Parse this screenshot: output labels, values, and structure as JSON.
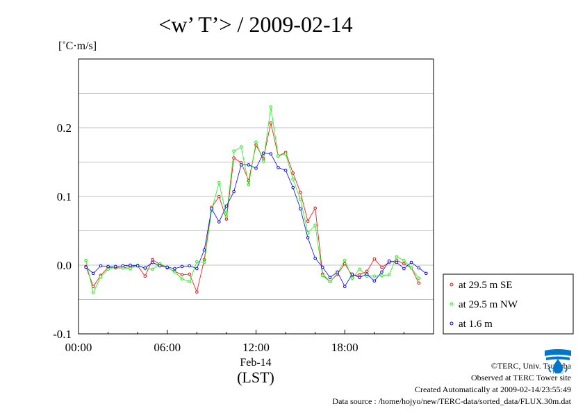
{
  "chart_data": {
    "type": "line",
    "title": "<w’ T’> / 2009-02-14",
    "ylabel": "[˚C·m/s]",
    "xlabel": "Feb-14",
    "xunit": "(LST)",
    "x_range": [
      "00:00",
      "24:00"
    ],
    "ylim": [
      -0.1,
      0.3
    ],
    "x_ticks": [
      "00:00",
      "06:00",
      "12:00",
      "18:00"
    ],
    "y_ticks": [
      "-0.1",
      "0.0",
      "0.1",
      "0.2"
    ],
    "grid": true,
    "legend_position": "right",
    "series": [
      {
        "name": "at 29.5 m SE",
        "color": "#ff0000",
        "times": [
          "00:30",
          "01:00",
          "01:30",
          "02:00",
          "02:30",
          "03:00",
          "03:30",
          "04:00",
          "04:30",
          "05:00",
          "05:30",
          "06:00",
          "06:30",
          "07:00",
          "07:30",
          "08:00",
          "08:30",
          "09:00",
          "09:30",
          "10:00",
          "10:30",
          "11:00",
          "11:30",
          "12:00",
          "12:30",
          "13:00",
          "13:30",
          "14:00",
          "14:30",
          "15:00",
          "15:30",
          "16:00",
          "16:30",
          "17:00",
          "17:30",
          "18:00",
          "18:30",
          "19:00",
          "19:30",
          "20:00",
          "20:30",
          "21:00",
          "21:30",
          "22:00",
          "22:30",
          "23:00",
          "23:30"
        ],
        "values": [
          -0.002,
          -0.031,
          -0.015,
          -0.003,
          -0.004,
          -0.004,
          -0.002,
          -0.001,
          -0.016,
          0.008,
          0.001,
          -0.004,
          -0.009,
          -0.014,
          -0.013,
          -0.039,
          0.008,
          0.084,
          0.1,
          0.067,
          0.156,
          0.149,
          0.123,
          0.175,
          0.155,
          0.207,
          0.159,
          0.164,
          0.134,
          0.106,
          0.064,
          0.083,
          -0.013,
          -0.024,
          -0.013,
          0.002,
          -0.015,
          -0.014,
          -0.009,
          0.009,
          -0.003,
          0.004,
          0.007,
          0.002,
          -0.004,
          -0.026,
          null
        ]
      },
      {
        "name": "at 29.5 m NW",
        "color": "#00ff00",
        "times": [
          "00:30",
          "01:00",
          "01:30",
          "02:00",
          "02:30",
          "03:00",
          "03:30",
          "04:00",
          "04:30",
          "05:00",
          "05:30",
          "06:00",
          "06:30",
          "07:00",
          "07:30",
          "08:00",
          "08:30",
          "09:00",
          "09:30",
          "10:00",
          "10:30",
          "11:00",
          "11:30",
          "12:00",
          "12:30",
          "13:00",
          "13:30",
          "14:00",
          "14:30",
          "15:00",
          "15:30",
          "16:00",
          "16:30",
          "17:00",
          "17:30",
          "18:00",
          "18:30",
          "19:00",
          "19:30",
          "20:00",
          "20:30",
          "21:00",
          "21:30",
          "22:00",
          "22:30",
          "23:00",
          "23:30"
        ],
        "values": [
          0.007,
          -0.04,
          -0.017,
          -0.006,
          -0.003,
          -0.004,
          -0.005,
          0.0,
          -0.005,
          -0.006,
          0.002,
          -0.003,
          -0.01,
          -0.02,
          -0.024,
          0.005,
          0.004,
          0.08,
          0.12,
          0.071,
          0.166,
          0.172,
          0.117,
          0.179,
          0.151,
          0.23,
          0.159,
          0.162,
          0.125,
          0.096,
          0.047,
          0.058,
          -0.015,
          -0.024,
          -0.012,
          0.007,
          -0.019,
          -0.006,
          -0.016,
          -0.016,
          -0.015,
          -0.014,
          0.012,
          0.007,
          -0.004,
          -0.019,
          null
        ]
      },
      {
        "name": "at 1.6 m",
        "color": "#0000ff",
        "times": [
          "00:30",
          "01:00",
          "01:30",
          "02:00",
          "02:30",
          "03:00",
          "03:30",
          "04:00",
          "04:30",
          "05:00",
          "05:30",
          "06:00",
          "06:30",
          "07:00",
          "07:30",
          "08:00",
          "08:30",
          "09:00",
          "09:30",
          "10:00",
          "10:30",
          "11:00",
          "11:30",
          "12:00",
          "12:30",
          "13:00",
          "13:30",
          "14:00",
          "14:30",
          "15:00",
          "15:30",
          "16:00",
          "16:30",
          "17:00",
          "17:30",
          "18:00",
          "18:30",
          "19:00",
          "19:30",
          "20:00",
          "20:30",
          "21:00",
          "21:30",
          "22:00",
          "22:30",
          "23:00",
          "23:30"
        ],
        "values": [
          -0.003,
          -0.012,
          -0.001,
          -0.002,
          -0.002,
          -0.001,
          0.0,
          -0.001,
          -0.004,
          0.004,
          -0.001,
          -0.003,
          -0.005,
          -0.002,
          -0.001,
          -0.005,
          0.022,
          0.082,
          0.063,
          0.086,
          0.107,
          0.146,
          0.146,
          0.141,
          0.163,
          0.162,
          0.142,
          0.138,
          0.113,
          0.082,
          0.04,
          0.01,
          -0.003,
          -0.018,
          -0.01,
          -0.031,
          -0.013,
          -0.018,
          -0.013,
          -0.023,
          -0.01,
          0.006,
          0.004,
          -0.005,
          0.004,
          -0.004,
          -0.012
        ]
      }
    ]
  },
  "footer": {
    "copyright": "©TERC, Univ. Tsukuba",
    "site": "Observed at TERC Tower site",
    "created": "Created Automatically at 2009-02-14/23:55:49",
    "source": "Data source : /home/hojyo/new/TERC-data/sorted_data/FLUX.30m.dat"
  },
  "logo": {
    "text": "TERC",
    "color": "#0077cc"
  }
}
